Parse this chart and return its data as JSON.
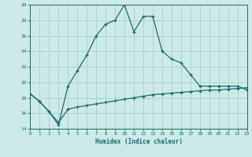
{
  "xlabel": "Humidex (Indice chaleur)",
  "bg_color": "#cceae8",
  "grid_color": "#aad4d2",
  "line_color": "#1a6b6b",
  "x_values": [
    0,
    1,
    2,
    3,
    4,
    5,
    6,
    7,
    8,
    9,
    10,
    11,
    12,
    13,
    14,
    15,
    16,
    17,
    18,
    19,
    20,
    21,
    22,
    23
  ],
  "line1_y": [
    18.5,
    17.5,
    16.2,
    14.5,
    19.5,
    21.5,
    23.5,
    26.0,
    27.5,
    28.0,
    30.0,
    26.5,
    28.5,
    28.5,
    24.0,
    23.0,
    22.5,
    21.0,
    19.5,
    19.5,
    19.5,
    19.5,
    19.5,
    19.0
  ],
  "line2_y": [
    18.5,
    17.5,
    16.2,
    14.8,
    16.5,
    16.8,
    17.0,
    17.2,
    17.4,
    17.6,
    17.8,
    18.0,
    18.2,
    18.4,
    18.5,
    18.6,
    18.7,
    18.8,
    18.9,
    19.0,
    19.0,
    19.1,
    19.2,
    19.3
  ],
  "ylim": [
    14,
    30
  ],
  "yticks": [
    14,
    16,
    18,
    20,
    22,
    24,
    26,
    28,
    30
  ],
  "xlim": [
    0,
    23
  ],
  "xticks": [
    0,
    1,
    2,
    3,
    4,
    5,
    6,
    7,
    8,
    9,
    10,
    11,
    12,
    13,
    14,
    15,
    16,
    17,
    18,
    19,
    20,
    21,
    22,
    23
  ]
}
